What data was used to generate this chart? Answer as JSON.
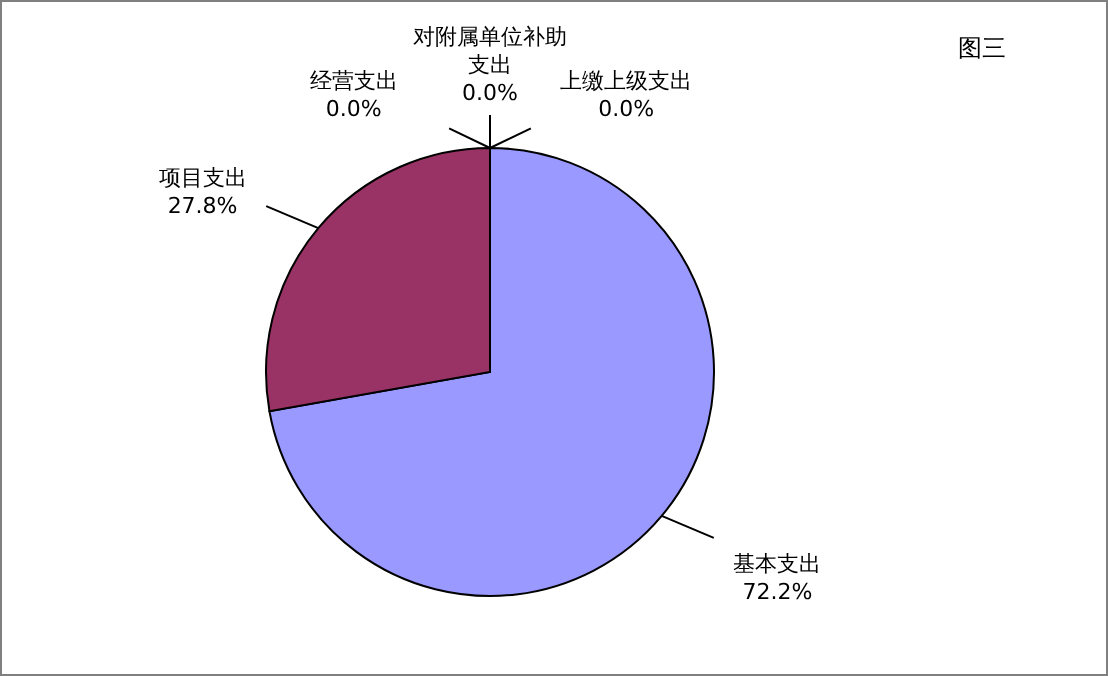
{
  "chart_data": {
    "type": "pie",
    "title": "图三",
    "categories": [
      "基本支出",
      "项目支出",
      "经营支出",
      "对附属单位补助支出",
      "上缴上级支出"
    ],
    "values": [
      72.2,
      27.8,
      0.0,
      0.0,
      0.0
    ],
    "colors": [
      "#9999ff",
      "#993366",
      "#ffffcc",
      "#ccffff",
      "#660066"
    ],
    "value_labels": [
      "72.2%",
      "27.8%",
      "0.0%",
      "0.0%",
      "0.0%"
    ],
    "legend": false
  }
}
